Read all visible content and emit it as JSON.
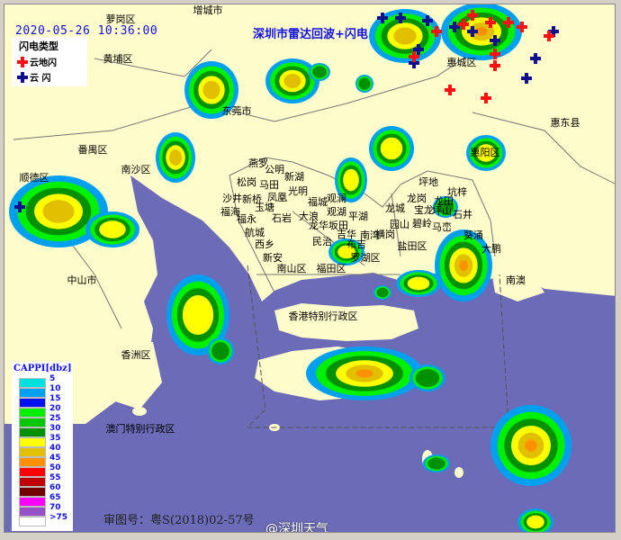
{
  "header": {
    "timestamp": "2020-05-26 10:36:00",
    "title": "深圳市雷达回波+闪电"
  },
  "lightning_legend": {
    "title": "闪电类型",
    "items": [
      {
        "label": "云地闪",
        "color": "#ff1010"
      },
      {
        "label": "云  闪",
        "color": "#10108f"
      }
    ]
  },
  "cappi_legend": {
    "title": "CAPPI[dbz]",
    "items": [
      {
        "label": "5",
        "color": "#00e0e0"
      },
      {
        "label": "10",
        "color": "#00a0f0"
      },
      {
        "label": "15",
        "color": "#0010f0"
      },
      {
        "label": "20",
        "color": "#00f000"
      },
      {
        "label": "25",
        "color": "#00c800"
      },
      {
        "label": "30",
        "color": "#009000"
      },
      {
        "label": "35",
        "color": "#ffff00"
      },
      {
        "label": "40",
        "color": "#e0c000"
      },
      {
        "label": "45",
        "color": "#ff9000"
      },
      {
        "label": "50",
        "color": "#ff0000"
      },
      {
        "label": "55",
        "color": "#c00000"
      },
      {
        "label": "60",
        "color": "#700000"
      },
      {
        "label": "65",
        "color": "#ff00ff"
      },
      {
        "label": "70",
        "color": "#9850c8"
      },
      {
        "label": ">75",
        "color": "#ffffff"
      }
    ]
  },
  "colors": {
    "land": "#fefccb",
    "sea": "#6b6bb8",
    "boundary": "#777777"
  },
  "labels": [
    "增城市",
    "萝岗区",
    "黄埔区",
    "东莞市",
    "番禺区",
    "南沙区",
    "顺德区",
    "中山市",
    "香洲区",
    "澳门特别行政区",
    "香港特别行政区",
    "惠城区",
    "惠东县",
    "惠阳区",
    "南澳",
    "大鹏",
    "燕罗",
    "公明",
    "松岗",
    "马田",
    "新湖",
    "光明",
    "沙井",
    "新桥",
    "凤凰",
    "福城",
    "观澜",
    "福海",
    "玉塘",
    "大浪",
    "观湖",
    "平湖",
    "福永",
    "石岩",
    "龙华",
    "坂田",
    "航城",
    "吉华",
    "布吉",
    "西乡",
    "民治",
    "新安",
    "南山区",
    "福田区",
    "罗湖区",
    "坪地",
    "坑梓",
    "龙岗",
    "龙田",
    "龙城",
    "宝龙",
    "坪山",
    "石井",
    "园山",
    "碧岭",
    "马峦",
    "葵涌",
    "横岗",
    "南湾",
    "盐田区"
  ],
  "footer": {
    "approval": "审图号：粤S(2018)02-57号",
    "watermark": "@深圳天气"
  }
}
